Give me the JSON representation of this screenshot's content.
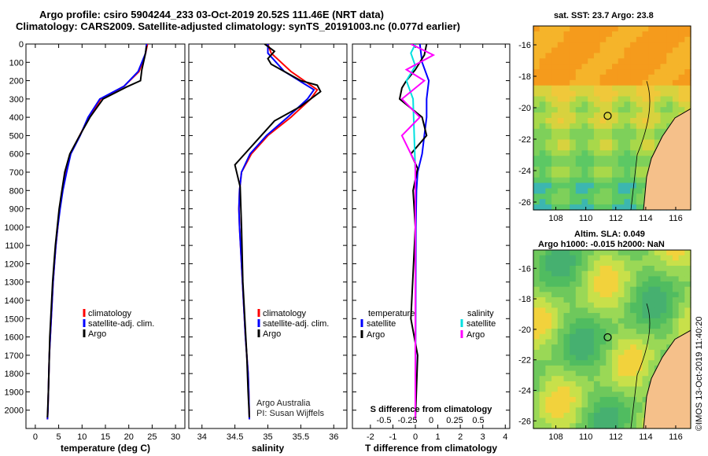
{
  "header": {
    "title_line1": "Argo profile: csiro 5904244_233 03-Oct-2019 20.52S 111.46E (NRT data)",
    "title_line2": "Climatology: CARS2009. Satellite-adjusted climatology: synTS_20191003.nc (0.077d earlier)"
  },
  "colors": {
    "climatology": "#ff0000",
    "satellite": "#0000ff",
    "argo": "#000000",
    "salinity_satellite": "#00e0e0",
    "salinity_argo": "#ff00ff"
  },
  "maps": {
    "sst_title": "sat. SST: 23.7 Argo: 23.8",
    "sla_title_line1": "Altim. SLA: 0.049",
    "sla_title_line2": "Argo h1000: -0.015 h2000: NaN",
    "yticks": [
      "-16",
      "-18",
      "-20",
      "-22",
      "-24",
      "-26"
    ],
    "xticks": [
      "108",
      "110",
      "112",
      "114",
      "116"
    ],
    "float_lon": 111.46,
    "float_lat": -20.52,
    "credit": "©IMOS 13-Oct-2019 11:40:20"
  },
  "chart_data": [
    {
      "type": "line",
      "panel": "temperature",
      "xlabel": "temperature (deg C)",
      "ylabel": "",
      "xlim": [
        -2,
        32
      ],
      "ylim": [
        2100,
        0
      ],
      "xticks": [
        0,
        5,
        10,
        15,
        20,
        25,
        30
      ],
      "xtick_labels": [
        "0",
        "5",
        "10",
        "15",
        "20",
        "25",
        "30"
      ],
      "yticks": [
        0,
        100,
        200,
        300,
        400,
        500,
        600,
        700,
        800,
        900,
        1000,
        1100,
        1200,
        1300,
        1400,
        1500,
        1600,
        1700,
        1800,
        1900,
        2000
      ],
      "ytick_labels": [
        "0",
        "100",
        "200",
        "300",
        "400",
        "500",
        "600",
        "700",
        "800",
        "900",
        "1000",
        "1100",
        "1200",
        "1300",
        "1400",
        "1500",
        "1600",
        "1700",
        "1800",
        "1900",
        "2000"
      ],
      "legend": [
        "climatology",
        "satellite-adj. clim.",
        "Argo"
      ],
      "legend_position": "lower-center",
      "series": [
        {
          "name": "climatology",
          "x": [
            24.0,
            23.6,
            22.2,
            19.0,
            14.0,
            11.5,
            9.5,
            7.5,
            6.5,
            5.8,
            5.2,
            4.8,
            4.4,
            4.1,
            3.8,
            3.6,
            3.4,
            3.2,
            3.0,
            2.9,
            2.8,
            2.7,
            2.6
          ],
          "y": [
            0,
            50,
            150,
            230,
            300,
            400,
            500,
            600,
            700,
            800,
            900,
            1000,
            1100,
            1200,
            1300,
            1400,
            1500,
            1600,
            1700,
            1800,
            1900,
            2000,
            2050
          ]
        },
        {
          "name": "satellite-adj. clim.",
          "x": [
            23.8,
            23.6,
            22.0,
            19.0,
            13.8,
            11.3,
            9.6,
            7.6,
            6.7,
            5.9,
            5.3,
            4.8,
            4.4,
            4.1,
            3.8,
            3.6,
            3.4,
            3.2,
            3.0,
            2.9,
            2.8,
            2.7,
            2.6
          ],
          "y": [
            0,
            50,
            150,
            230,
            300,
            400,
            500,
            600,
            700,
            800,
            900,
            1000,
            1100,
            1200,
            1300,
            1400,
            1500,
            1600,
            1700,
            1800,
            1900,
            2000,
            2050
          ]
        },
        {
          "name": "Argo",
          "x": [
            23.8,
            23.5,
            22.8,
            22.5,
            19.5,
            14.5,
            11.7,
            9.5,
            7.4,
            6.3,
            5.7,
            5.1,
            4.7,
            4.3,
            4.0,
            3.7,
            3.5,
            3.3,
            3.1,
            3.0,
            2.9,
            2.8,
            2.6
          ],
          "y": [
            10,
            60,
            140,
            200,
            235,
            300,
            400,
            500,
            600,
            700,
            800,
            900,
            1000,
            1100,
            1200,
            1300,
            1400,
            1500,
            1600,
            1700,
            1800,
            1900,
            2040
          ]
        }
      ]
    },
    {
      "type": "line",
      "panel": "salinity",
      "xlabel": "salinity",
      "ylabel": "",
      "xlim": [
        33.8,
        36.2
      ],
      "ylim": [
        2100,
        0
      ],
      "xticks": [
        34,
        34.5,
        35,
        35.5,
        36
      ],
      "xtick_labels": [
        "34",
        "34.5",
        "35",
        "35.5",
        "36"
      ],
      "legend": [
        "climatology",
        "satellite-adj. clim.",
        "Argo"
      ],
      "legend_position": "lower-right",
      "annotation": [
        "Argo Australia",
        "PI: Susan Wijffels"
      ],
      "series": [
        {
          "name": "climatology",
          "x": [
            35.0,
            35.05,
            35.35,
            35.75,
            35.65,
            35.35,
            35.0,
            34.75,
            34.6,
            34.57,
            34.56,
            34.57,
            34.6,
            34.63,
            34.66,
            34.68,
            34.7,
            34.71,
            34.72
          ],
          "y": [
            0,
            50,
            150,
            250,
            300,
            400,
            500,
            600,
            700,
            800,
            900,
            1000,
            1200,
            1400,
            1600,
            1700,
            1800,
            1900,
            2050
          ]
        },
        {
          "name": "satellite-adj. clim.",
          "x": [
            35.0,
            35.0,
            35.25,
            35.7,
            35.6,
            35.3,
            34.98,
            34.73,
            34.6,
            34.57,
            34.56,
            34.57,
            34.6,
            34.63,
            34.66,
            34.68,
            34.7,
            34.71,
            34.72
          ],
          "y": [
            0,
            50,
            150,
            250,
            300,
            400,
            500,
            600,
            700,
            800,
            900,
            1000,
            1200,
            1400,
            1600,
            1700,
            1800,
            1900,
            2050
          ]
        },
        {
          "name": "Argo",
          "x": [
            34.95,
            35.1,
            35.0,
            35.05,
            35.5,
            35.75,
            35.8,
            35.5,
            35.1,
            34.9,
            34.55,
            34.5,
            34.58,
            34.6,
            34.62,
            34.65,
            34.68,
            34.7,
            34.72
          ],
          "y": [
            0,
            40,
            80,
            110,
            200,
            225,
            260,
            340,
            420,
            500,
            640,
            660,
            780,
            1000,
            1300,
            1500,
            1700,
            1900,
            2040
          ]
        }
      ]
    },
    {
      "type": "line",
      "panel": "difference",
      "xlabel": "T difference from climatology",
      "xlim": [
        -2.8,
        4.2
      ],
      "ylim": [
        2100,
        0
      ],
      "xticks": [
        -2,
        -1,
        0,
        1,
        2,
        3,
        4
      ],
      "xtick_labels": [
        "-2",
        "-1",
        "0",
        "1",
        "2",
        "3",
        "4"
      ],
      "s_axis_label": "S difference from climatology",
      "s_ticks": [
        -0.5,
        -0.25,
        0,
        0.25,
        0.5
      ],
      "s_tick_labels": [
        "-0.5",
        "-0.25",
        "0",
        "0.25",
        "0.5"
      ],
      "legend_temperature_title": "temperature",
      "legend_salinity_title": "salinity",
      "legend_temperature": [
        "satellite",
        "Argo"
      ],
      "legend_salinity": [
        "satellite",
        "Argo"
      ],
      "series": [
        {
          "name": "satellite",
          "group": "temperature",
          "x": [
            0.2,
            0.3,
            0.6,
            0.5,
            0.5,
            0.4,
            0.3,
            0.1,
            0.05,
            0.02,
            0.0
          ],
          "y": [
            0,
            100,
            200,
            300,
            400,
            500,
            600,
            700,
            800,
            1000,
            2050
          ]
        },
        {
          "name": "Argo",
          "group": "temperature",
          "x": [
            0.5,
            0.4,
            0.0,
            -0.4,
            -0.6,
            -0.7,
            0.3,
            0.5,
            -0.2,
            0.1,
            -0.1,
            0.0,
            -0.2,
            0.1,
            0.0
          ],
          "y": [
            0,
            60,
            140,
            200,
            240,
            300,
            400,
            500,
            600,
            680,
            800,
            1000,
            1500,
            1700,
            2050
          ]
        },
        {
          "name": "satellite",
          "group": "salinity",
          "x": [
            0.0,
            -0.1,
            0.0,
            -0.2,
            -0.05,
            0.0,
            0.0
          ],
          "y": [
            0,
            50,
            120,
            200,
            300,
            700,
            2050
          ]
        },
        {
          "name": "Argo",
          "group": "salinity",
          "x": [
            -0.1,
            0.4,
            -0.2,
            0.2,
            -0.3,
            0.1,
            -0.3,
            0.0,
            0.0
          ],
          "y": [
            0,
            60,
            140,
            200,
            300,
            400,
            500,
            650,
            2050
          ]
        }
      ]
    }
  ]
}
